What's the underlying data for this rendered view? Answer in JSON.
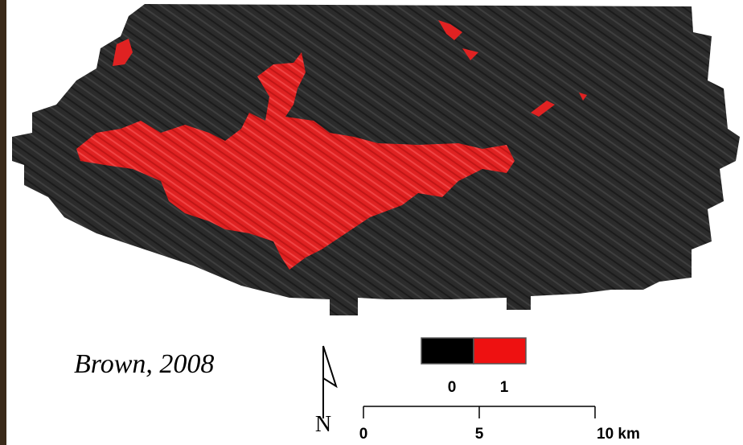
{
  "map": {
    "citation": "Brown, 2008",
    "legend": {
      "items": [
        {
          "label": "0",
          "color": "#000000"
        },
        {
          "label": "1",
          "color": "#ee1111"
        }
      ]
    },
    "scale_bar": {
      "labels": [
        "0",
        "5",
        "10 km"
      ]
    },
    "north_arrow": {
      "label": "N"
    }
  }
}
